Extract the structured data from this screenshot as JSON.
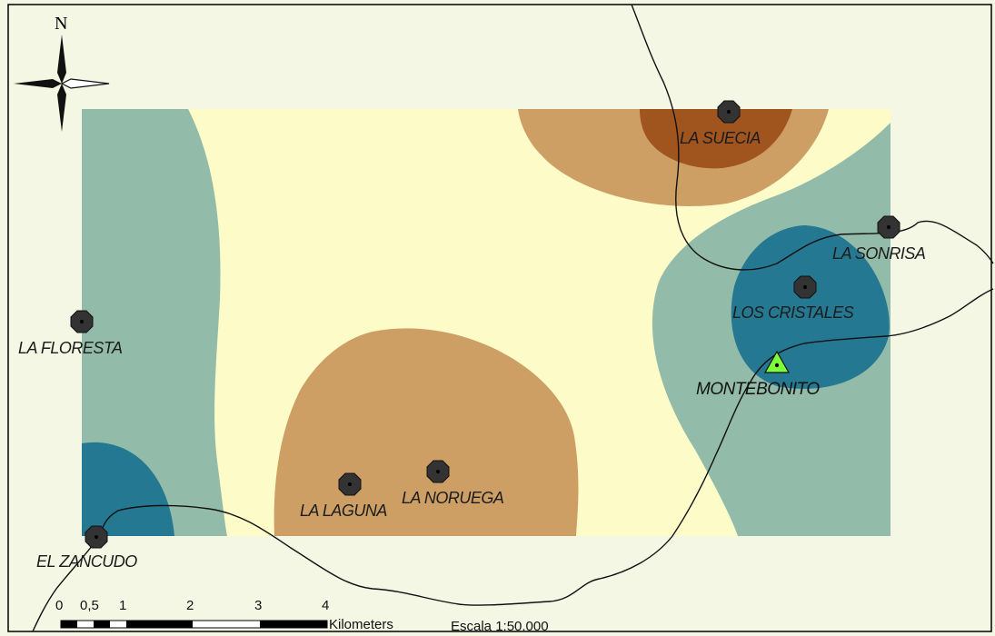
{
  "north_label": "N",
  "towns": [
    {
      "name": "LA SUECIA"
    },
    {
      "name": "LA SONRISA"
    },
    {
      "name": "LOS CRISTALES"
    },
    {
      "name": "LA FLORESTA"
    },
    {
      "name": "LA LAGUNA"
    },
    {
      "name": "LA NORUEGA"
    },
    {
      "name": "EL ZANCUDO"
    }
  ],
  "main_town": {
    "name": "MONTEBONITO"
  },
  "scalebar": {
    "ticks": [
      "0",
      "0,5",
      "1",
      "2",
      "3",
      "4"
    ],
    "unit": "Kilometers",
    "scale_text": "Escala 1:50.000"
  },
  "colors": {
    "frame_bg": "#f3f7e4",
    "low_light": "#fdfbc8",
    "teal_light": "#92bba9",
    "teal_dark": "#257891",
    "brown_light": "#cd9f65",
    "brown_dark": "#a0541e",
    "marker_main": "#7cff3a"
  }
}
